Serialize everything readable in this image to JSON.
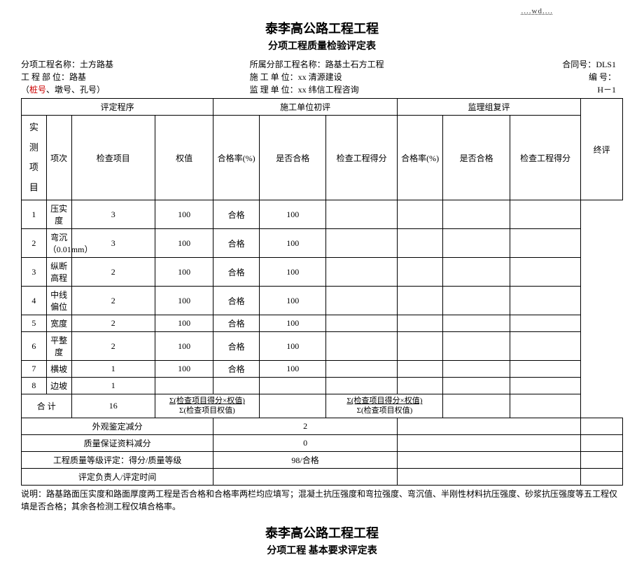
{
  "top_mark": "....wd....",
  "main_title": "泰李高公路工程工程",
  "sub_title": "分项工程质量检验评定表",
  "header": {
    "proj_name_label": "分项工程名称：",
    "proj_name": "土方路基",
    "parent_label": "所属分部工程名称：",
    "parent_name": "路基土石方工程",
    "contract_label": "合同号：",
    "contract_no": "DLS1",
    "dept_label": "工 程 部 位：",
    "dept": "路基",
    "const_label": "施  工  单  位：",
    "const_unit": "xx 清源建设",
    "code_label": "编 号：",
    "stake_label_paren": "（",
    "stake_red": "桩号",
    "stake_rest": "、墩号、孔号）",
    "super_label": "监  理  单  位：",
    "super_unit": "xx 纬信工程咨询",
    "page_no": "H－1"
  },
  "table": {
    "h_procedure": "评定程序",
    "h_const_eval": "施工单位初评",
    "h_super_eval": "监理组复评",
    "h_final": "终评",
    "h_idx": "项次",
    "h_item": "检查项目",
    "h_weight": "权值",
    "h_rate": "合格率(%)",
    "h_pass": "是否合格",
    "h_score": "检查工程得分",
    "side_label": "实 测 项 目",
    "rows": [
      {
        "idx": "1",
        "item": "压实度",
        "weight": "3",
        "rate": "100",
        "pass": "合格",
        "score": "100"
      },
      {
        "idx": "2",
        "item": "弯沉（0.01mm）",
        "weight": "3",
        "rate": "100",
        "pass": "合格",
        "score": "100"
      },
      {
        "idx": "3",
        "item": "纵断高程",
        "weight": "2",
        "rate": "100",
        "pass": "合格",
        "score": "100"
      },
      {
        "idx": "4",
        "item": "中线偏位",
        "weight": "2",
        "rate": "100",
        "pass": "合格",
        "score": "100"
      },
      {
        "idx": "5",
        "item": "宽度",
        "weight": "2",
        "rate": "100",
        "pass": "合格",
        "score": "100"
      },
      {
        "idx": "6",
        "item": "平整度",
        "weight": "2",
        "rate": "100",
        "pass": "合格",
        "score": "100"
      },
      {
        "idx": "7",
        "item": "横坡",
        "weight": "1",
        "rate": "100",
        "pass": "合格",
        "score": "100"
      },
      {
        "idx": "8",
        "item": "边坡",
        "weight": "1",
        "rate": "",
        "pass": "",
        "score": ""
      }
    ],
    "total_label": "合    计",
    "total_weight": "16",
    "formula": "Σ(检查项目得分×权值) Σ(检查项目权值)",
    "appearance_label": "外观鉴定减分",
    "appearance_val": "2",
    "quality_doc_label": "质量保证资料减分",
    "quality_doc_val": "0",
    "grade_label": "工程质量等级评定：得分/质量等级",
    "grade_val": "98/合格",
    "reviewer_label": "评定负责人/评定时间"
  },
  "note_label": "说明：",
  "note_text": "路基路面压实度和路面厚度两工程是否合格和合格率两栏均应填写；混凝土抗压强度和弯拉强度、弯沉值、半刚性材料抗压强度、砂浆抗压强度等五工程仅填是否合格；其余各检测工程仅填合格率。",
  "sec2_title1": "泰李高公路工程工程",
  "sec2_title2": "分项工程 基本要求评定表"
}
